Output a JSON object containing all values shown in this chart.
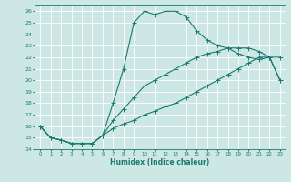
{
  "xlabel": "Humidex (Indice chaleur)",
  "bg_color": "#cde8e4",
  "line_color": "#1a7a6e",
  "grid_color": "#b5d9d4",
  "xlim": [
    -0.5,
    23.5
  ],
  "ylim": [
    14,
    26.5
  ],
  "xticks": [
    0,
    1,
    2,
    3,
    4,
    5,
    6,
    7,
    8,
    9,
    10,
    11,
    12,
    13,
    14,
    15,
    16,
    17,
    18,
    19,
    20,
    21,
    22,
    23
  ],
  "yticks": [
    14,
    15,
    16,
    17,
    18,
    19,
    20,
    21,
    22,
    23,
    24,
    25,
    26
  ],
  "line1_x": [
    0,
    1,
    2,
    3,
    4,
    5,
    6,
    7,
    8,
    9,
    10,
    11,
    12,
    13,
    14,
    15,
    16,
    17,
    18,
    19,
    20,
    21,
    22,
    23
  ],
  "line1_y": [
    16.0,
    15.0,
    14.8,
    14.5,
    14.5,
    14.5,
    15.2,
    18.0,
    21.0,
    25.0,
    26.0,
    25.7,
    26.0,
    26.0,
    25.5,
    24.3,
    23.5,
    23.0,
    22.8,
    22.3,
    22.0,
    21.8,
    22.0,
    20.0
  ],
  "line2_x": [
    0,
    1,
    2,
    3,
    4,
    5,
    6,
    7,
    8,
    9,
    10,
    11,
    12,
    13,
    14,
    15,
    16,
    17,
    18,
    19,
    20,
    21,
    22,
    23
  ],
  "line2_y": [
    16.0,
    15.0,
    14.8,
    14.5,
    14.5,
    14.5,
    15.2,
    16.5,
    17.5,
    18.5,
    19.5,
    20.0,
    20.5,
    21.0,
    21.5,
    22.0,
    22.3,
    22.5,
    22.8,
    22.8,
    22.8,
    22.5,
    22.0,
    22.0
  ],
  "line3_x": [
    0,
    1,
    2,
    3,
    4,
    5,
    6,
    7,
    8,
    9,
    10,
    11,
    12,
    13,
    14,
    15,
    16,
    17,
    18,
    19,
    20,
    21,
    22,
    23
  ],
  "line3_y": [
    16.0,
    15.0,
    14.8,
    14.5,
    14.5,
    14.5,
    15.2,
    15.8,
    16.2,
    16.5,
    17.0,
    17.3,
    17.7,
    18.0,
    18.5,
    19.0,
    19.5,
    20.0,
    20.5,
    21.0,
    21.5,
    22.0,
    22.0,
    20.0
  ]
}
